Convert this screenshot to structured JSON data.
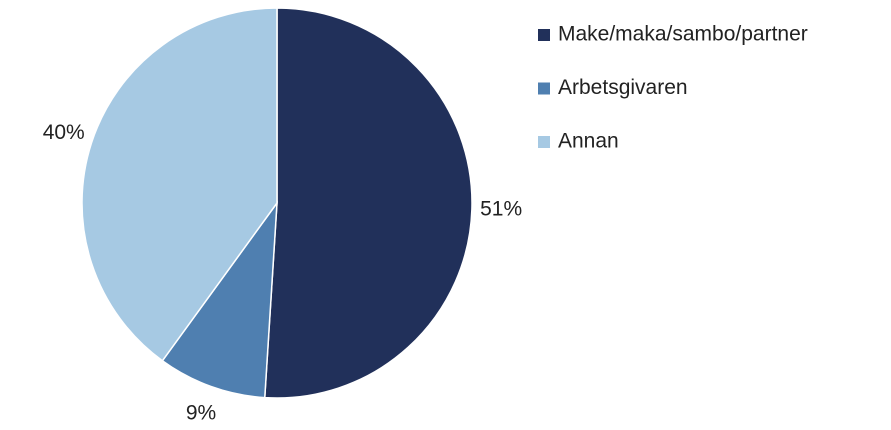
{
  "chart_data": {
    "type": "pie",
    "categories": [
      "Make/maka/sambo/partner",
      "Arbetsgivaren",
      "Annan"
    ],
    "values": [
      51,
      9,
      40
    ],
    "value_labels": [
      "51%",
      "9%",
      "40%"
    ],
    "colors": [
      "#21305a",
      "#4f7fb0",
      "#a6c9e3"
    ],
    "legend": "right"
  }
}
